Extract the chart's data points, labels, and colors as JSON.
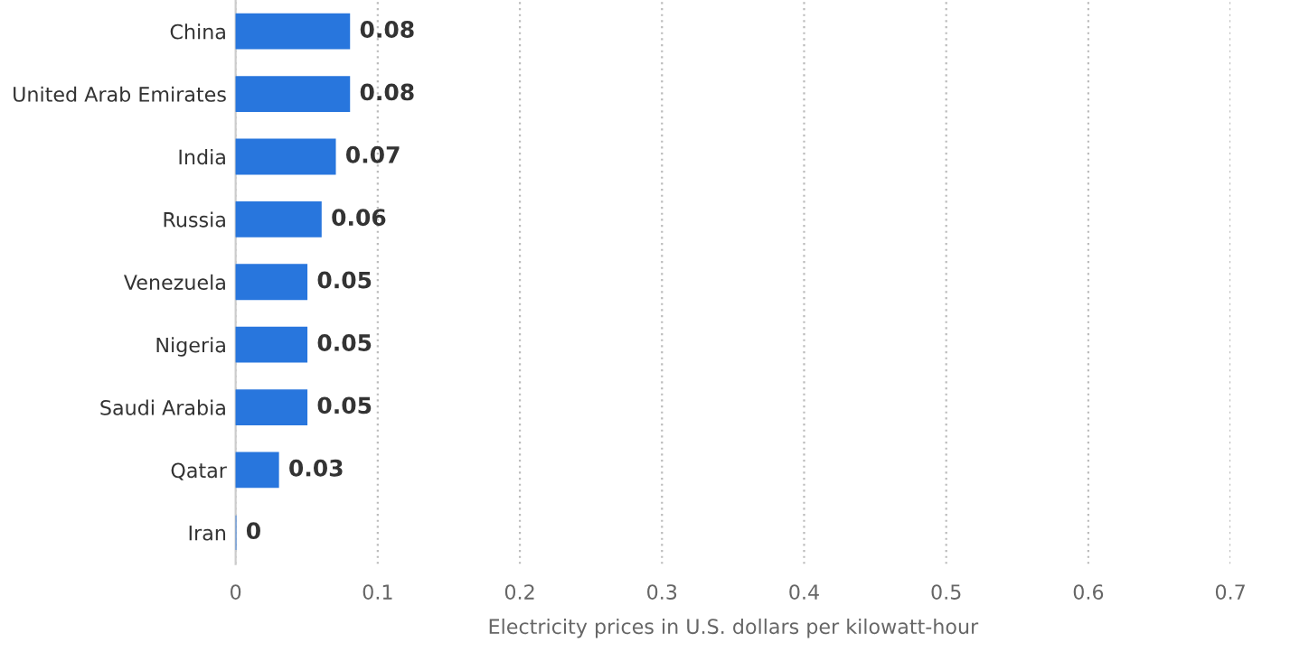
{
  "chart_data": {
    "type": "bar",
    "orientation": "horizontal",
    "xlabel": "Electricity prices in U.S. dollars per kilowatt-hour",
    "categories": [
      "China",
      "United Arab Emirates",
      "India",
      "Russia",
      "Venezuela",
      "Nigeria",
      "Saudi Arabia",
      "Qatar",
      "Iran"
    ],
    "values": [
      0.08,
      0.08,
      0.07,
      0.06,
      0.05,
      0.05,
      0.05,
      0.03,
      0
    ],
    "color": "#2876dd",
    "data_labels": true,
    "xlim": [
      0,
      0.7
    ],
    "xticks": [
      0,
      0.1,
      0.2,
      0.3,
      0.4,
      0.5,
      0.6,
      0.7
    ],
    "grid": "x",
    "legend": false
  }
}
